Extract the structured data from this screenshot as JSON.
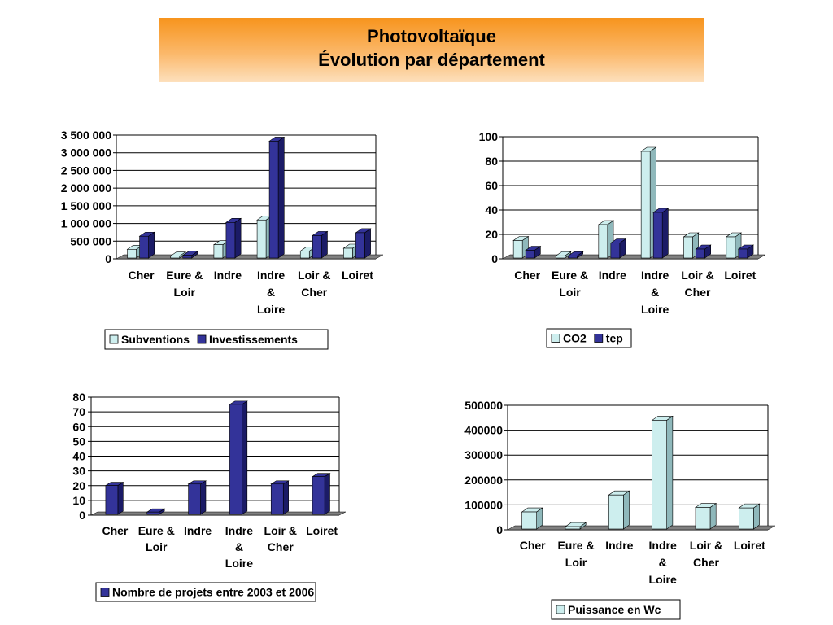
{
  "title": {
    "line1": "Photovoltaïque",
    "line2": "Évolution par département"
  },
  "colors": {
    "light": "#cdeeee",
    "light_side": "#8fb8bb",
    "dark": "#333399",
    "dark_side": "#1b1b66",
    "floor": "#808080",
    "grid": "#000000"
  },
  "chart_data": [
    {
      "type": "bar",
      "categories": [
        "Cher",
        "Eure & Loir",
        "Indre",
        "Indre & Loire",
        "Loir & Cher",
        "Loiret"
      ],
      "series": [
        {
          "name": "Subventions",
          "values": [
            200000,
            10000,
            330000,
            1030000,
            150000,
            230000
          ]
        },
        {
          "name": "Investissements",
          "values": [
            570000,
            30000,
            960000,
            3260000,
            590000,
            670000
          ]
        }
      ],
      "yticks": [
        "0",
        "500 000",
        "1 000 000",
        "1 500 000",
        "2 000 000",
        "2 500 000",
        "3 000 000",
        "3 500 000"
      ],
      "ylim": [
        0,
        3500000
      ],
      "grid": true,
      "legend": "bottom"
    },
    {
      "type": "bar",
      "categories": [
        "Cher",
        "Eure & Loir",
        "Indre",
        "Indre & Loire",
        "Loir & Cher",
        "Loiret"
      ],
      "series": [
        {
          "name": "CO2",
          "values": [
            13,
            0.5,
            26,
            86,
            16,
            16
          ]
        },
        {
          "name": "tep",
          "values": [
            5,
            0.5,
            11,
            36,
            6,
            6
          ]
        }
      ],
      "yticks": [
        "0",
        "20",
        "40",
        "60",
        "80",
        "100"
      ],
      "ylim": [
        0,
        100
      ],
      "grid": true,
      "legend": "bottom"
    },
    {
      "type": "bar",
      "categories": [
        "Cher",
        "Eure & Loir",
        "Indre",
        "Indre & Loire",
        "Loir & Cher",
        "Loiret"
      ],
      "series": [
        {
          "name": "Nombre de projets entre 2003 et 2006",
          "values": [
            19,
            1,
            20,
            74,
            20,
            25
          ]
        }
      ],
      "yticks": [
        "0",
        "10",
        "20",
        "30",
        "40",
        "50",
        "60",
        "70",
        "80"
      ],
      "ylim": [
        0,
        80
      ],
      "grid": true,
      "legend": "bottom"
    },
    {
      "type": "bar",
      "categories": [
        "Cher",
        "Eure & Loir",
        "Indre",
        "Indre & Loire",
        "Loir & Cher",
        "Loiret"
      ],
      "series": [
        {
          "name": "Puissance en Wc",
          "values": [
            62000,
            3000,
            130000,
            430000,
            80000,
            78000
          ]
        }
      ],
      "yticks": [
        "0",
        "100000",
        "200000",
        "300000",
        "400000",
        "500000"
      ],
      "ylim": [
        0,
        500000
      ],
      "grid": true,
      "legend": "bottom"
    }
  ]
}
